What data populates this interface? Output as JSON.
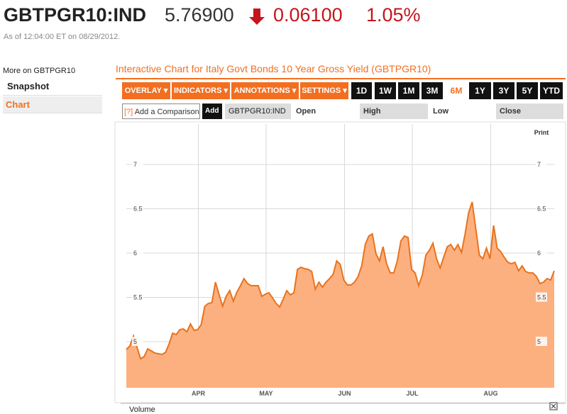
{
  "header": {
    "symbol": "GBTPGR10:IND",
    "price": "5.76900",
    "change": "0.06100",
    "change_pct": "1.05%",
    "timestamp": "As of 12:04:00 ET on 08/29/2012."
  },
  "sidebar": {
    "heading": "More on GBTPGR10",
    "items": [
      "Snapshot",
      "Chart"
    ]
  },
  "toolbar": {
    "menus": [
      "OVERLAY",
      "INDICATORS",
      "ANNOTATIONS",
      "SETTINGS"
    ],
    "ranges": [
      "1D",
      "1W",
      "1M",
      "3M",
      "6M",
      "1Y",
      "3Y",
      "5Y",
      "YTD"
    ]
  },
  "comparison": {
    "help": "[?]",
    "placeholder": "Add a Comparison",
    "button": "Add",
    "symbol": "GBTPGR10:IND",
    "fields": [
      "Open",
      "High",
      "Low",
      "Close"
    ]
  },
  "print": "Print",
  "volume_label": "Volume",
  "chart_data": {
    "type": "area",
    "title": "Interactive Chart for Italy Govt Bonds 10 Year Gross Yield (GBTPGR10)",
    "values": [
      4.912,
      4.952,
      5.064,
      4.936,
      4.808,
      4.832,
      4.92,
      4.896,
      4.872,
      4.864,
      4.856,
      4.88,
      4.976,
      5.096,
      5.08,
      5.136,
      5.144,
      5.112,
      5.2,
      5.128,
      5.136,
      5.192,
      5.4,
      5.432,
      5.44,
      5.672,
      5.536,
      5.4,
      5.512,
      5.576,
      5.456,
      5.56,
      5.632,
      5.712,
      5.656,
      5.632,
      5.632,
      5.632,
      5.512,
      5.536,
      5.552,
      5.496,
      5.432,
      5.392,
      5.48,
      5.576,
      5.528,
      5.552,
      5.816,
      5.84,
      5.824,
      5.816,
      5.792,
      5.592,
      5.672,
      5.616,
      5.672,
      5.712,
      5.76,
      5.912,
      5.872,
      5.696,
      5.64,
      5.64,
      5.672,
      5.736,
      5.856,
      6.096,
      6.192,
      6.216,
      5.992,
      5.912,
      6.072,
      5.88,
      5.776,
      5.776,
      5.912,
      6.136,
      6.192,
      6.176,
      5.816,
      5.776,
      5.632,
      5.752,
      5.976,
      6.032,
      6.112,
      5.936,
      5.832,
      5.952,
      6.072,
      6.096,
      6.032,
      6.096,
      6.008,
      6.216,
      6.456,
      6.576,
      6.272,
      5.976,
      5.936,
      6.056,
      5.936,
      6.312,
      6.056,
      6.016,
      5.952,
      5.896,
      5.88,
      5.896,
      5.8,
      5.856,
      5.792,
      5.776,
      5.776,
      5.736,
      5.656,
      5.672,
      5.712,
      5.696,
      5.8
    ],
    "xlim": [
      0,
      120
    ],
    "xticks": [
      {
        "value": 20.2,
        "label": "APR"
      },
      {
        "value": 39.2,
        "label": "MAY"
      },
      {
        "value": 61.2,
        "label": "JUN"
      },
      {
        "value": 80.2,
        "label": "JUL"
      },
      {
        "value": 102.2,
        "label": "AUG"
      }
    ],
    "ylim": [
      4.48,
      7.456
    ],
    "yticks": [
      5,
      5.5,
      6,
      6.5,
      7
    ],
    "color": "#e8731c",
    "fill": "#fcb080",
    "grid": true
  }
}
